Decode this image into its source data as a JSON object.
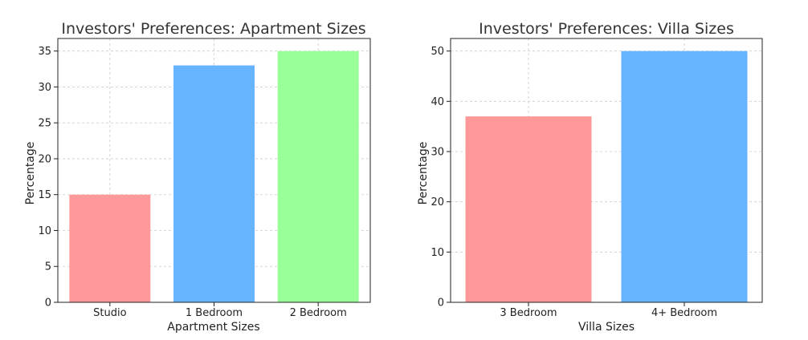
{
  "chart_data": [
    {
      "type": "bar",
      "title": "Investors' Preferences: Apartment Sizes",
      "xlabel": "Apartment Sizes",
      "ylabel": "Percentage",
      "categories": [
        "Studio",
        "1 Bedroom",
        "2 Bedroom"
      ],
      "values": [
        15,
        33,
        35
      ],
      "colors": [
        "#ff9999",
        "#66b3ff",
        "#99ff99"
      ],
      "ylim": [
        0,
        36.75
      ],
      "yticks": [
        0,
        5,
        10,
        15,
        20,
        25,
        30,
        35
      ],
      "grid": true
    },
    {
      "type": "bar",
      "title": "Investors' Preferences: Villa Sizes",
      "xlabel": "Villa Sizes",
      "ylabel": "Percentage",
      "categories": [
        "3 Bedroom",
        "4+ Bedroom"
      ],
      "values": [
        37,
        50
      ],
      "colors": [
        "#ff9999",
        "#66b3ff"
      ],
      "ylim": [
        0,
        52.5
      ],
      "yticks": [
        0,
        10,
        20,
        30,
        40,
        50
      ],
      "grid": true
    }
  ]
}
